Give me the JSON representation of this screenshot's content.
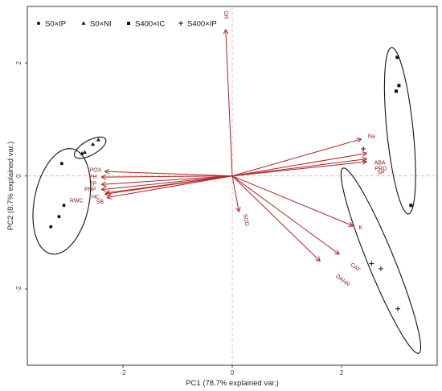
{
  "chart_data": {
    "type": "scatter",
    "xlabel": "PC1 (78.7% explained var.)",
    "ylabel": "PC2 (8.7% explained var.)",
    "xlim": [
      -3.75,
      3.75
    ],
    "ylim": [
      -3.35,
      3.0
    ],
    "x_ticks": [
      -2,
      0,
      2
    ],
    "y_ticks": [
      -2,
      0,
      2
    ],
    "grid": false,
    "legend_position": "top-left",
    "colors": {
      "points": "#111111",
      "arrows": "#b22222",
      "arrow_labels": "#8b1a1a",
      "ref_lines": "#f4a3a3"
    },
    "series": [
      {
        "name": "S0×IP",
        "marker": "circle",
        "points": [
          [
            -3.12,
            0.22
          ],
          [
            -3.17,
            -0.72
          ],
          [
            -3.32,
            -0.9
          ],
          [
            -3.08,
            -0.52
          ]
        ]
      },
      {
        "name": "S0×NI",
        "marker": "triangle",
        "points": [
          [
            -2.45,
            0.64
          ],
          [
            -2.7,
            0.42
          ],
          [
            -2.55,
            0.56
          ],
          [
            -2.75,
            0.4
          ]
        ]
      },
      {
        "name": "S400×IC",
        "marker": "square",
        "points": [
          [
            3.02,
            2.1
          ],
          [
            3.0,
            1.5
          ],
          [
            3.05,
            1.6
          ],
          [
            3.27,
            -0.52
          ]
        ]
      },
      {
        "name": "S400×IP",
        "marker": "plus",
        "points": [
          [
            2.55,
            -1.55
          ],
          [
            2.72,
            -1.64
          ],
          [
            3.03,
            -2.35
          ],
          [
            2.4,
            0.48
          ]
        ]
      }
    ],
    "ellipses": [
      {
        "group": "S0×IP",
        "cx": -3.12,
        "cy": -0.45,
        "rx": 0.95,
        "ry": 0.5,
        "angle_deg": 78
      },
      {
        "group": "S0×NI",
        "cx": -2.6,
        "cy": 0.5,
        "rx": 0.32,
        "ry": 0.13,
        "angle_deg": 28
      },
      {
        "group": "S400×IC",
        "cx": 3.07,
        "cy": 0.8,
        "rx": 1.48,
        "ry": 0.24,
        "angle_deg": -84
      },
      {
        "group": "S400×IP",
        "cx": 2.72,
        "cy": -1.5,
        "rx": 1.78,
        "ry": 0.24,
        "angle_deg": -67
      }
    ],
    "loadings": [
      {
        "label": "GR",
        "x": -0.12,
        "y": 2.58,
        "label_x": -0.12,
        "label_y": 2.85,
        "label_rot": 90
      },
      {
        "label": "Na",
        "x": 2.35,
        "y": 0.65,
        "label_x": 2.55,
        "label_y": 0.7
      },
      {
        "label": "ABA",
        "x": 2.45,
        "y": 0.4,
        "label_x": 2.7,
        "label_y": 0.23
      },
      {
        "label": "PRO",
        "x": 2.45,
        "y": 0.3,
        "label_x": 2.72,
        "label_y": 0.13
      },
      {
        "label": "SP",
        "x": 2.45,
        "y": 0.25,
        "label_x": 2.72,
        "label_y": 0.06
      },
      {
        "label": "K",
        "x": 2.2,
        "y": -0.88,
        "label_x": 2.35,
        "label_y": -0.92
      },
      {
        "label": "CAT",
        "x": 1.95,
        "y": -1.38,
        "label_x": 2.25,
        "label_y": -1.62,
        "label_rot": 38
      },
      {
        "label": "DAHR",
        "x": 1.6,
        "y": -1.5,
        "label_x": 2.02,
        "label_y": -1.85,
        "label_rot": 38
      },
      {
        "label": "SOD",
        "x": 0.12,
        "y": -0.62,
        "label_x": 0.25,
        "label_y": -0.78,
        "label_rot": 80
      },
      {
        "label": "POX",
        "x": -2.32,
        "y": 0.08,
        "label_x": -2.5,
        "label_y": 0.1
      },
      {
        "label": "PH",
        "x": -2.38,
        "y": -0.02,
        "label_x": -2.55,
        "label_y": -0.02
      },
      {
        "label": "TP",
        "x": -2.38,
        "y": -0.15,
        "label_x": -2.55,
        "label_y": -0.14
      },
      {
        "label": "PHP",
        "x": -2.38,
        "y": -0.24,
        "label_x": -2.6,
        "label_y": -0.24
      },
      {
        "label": "HC",
        "x": -2.32,
        "y": -0.32,
        "label_x": -2.5,
        "label_y": -0.38
      },
      {
        "label": "SB",
        "x": -2.28,
        "y": -0.38,
        "label_x": -2.42,
        "label_y": -0.46
      },
      {
        "label": "RWC",
        "x": -2.3,
        "y": -0.3,
        "label_x": -2.85,
        "label_y": -0.44
      }
    ]
  }
}
